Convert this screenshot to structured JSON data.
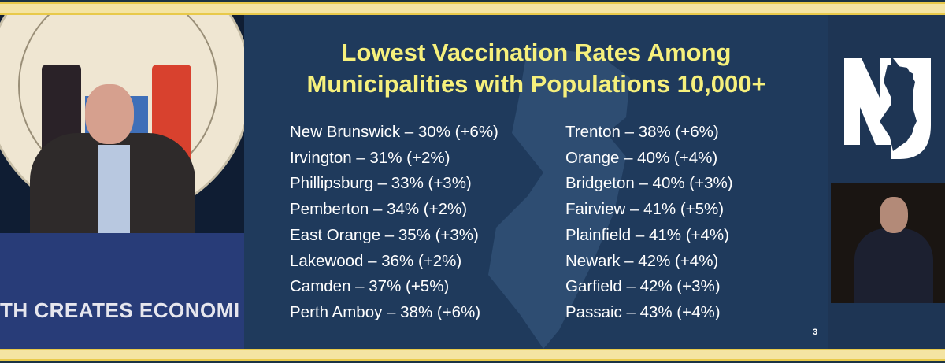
{
  "video": {
    "podium_text": "TH CREATES ECONOMI"
  },
  "slide": {
    "title_line1": "Lowest Vaccination Rates Among",
    "title_line2": "Municipalities with Populations 10,000+",
    "left_column": [
      "New Brunswick – 30% (+6%)",
      "Irvington – 31% (+2%)",
      "Phillipsburg – 33% (+3%)",
      "Pemberton – 34% (+2%)",
      "East Orange – 35% (+3%)",
      "Lakewood – 36% (+2%)",
      "Camden – 37% (+5%)",
      "Perth Amboy – 38% (+6%)"
    ],
    "right_column": [
      "Trenton – 38% (+6%)",
      "Orange – 40% (+4%)",
      "Bridgeton – 40% (+3%)",
      "Fairview – 41% (+5%)",
      "Plainfield – 41% (+4%)",
      "Newark – 42% (+4%)",
      "Garfield – 42% (+3%)",
      "Passaic – 43% (+4%)"
    ],
    "page_number": "3"
  },
  "logo": {
    "text": "NJ"
  },
  "colors": {
    "slide_bg": "#1f3a5c",
    "title": "#f6f07c",
    "band": "#f4e4a3",
    "podium": "#283c78"
  }
}
